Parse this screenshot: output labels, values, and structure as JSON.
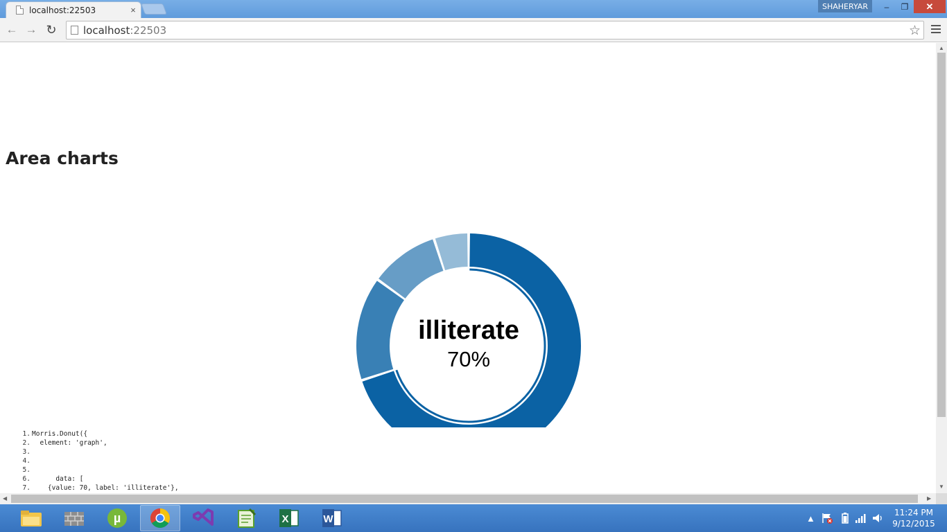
{
  "browser": {
    "tab_title": "localhost:22503",
    "tab_close": "×",
    "profile_name": "SHAHERYAR",
    "window_controls": {
      "minimize": "–",
      "maximize": "❐",
      "close": "✕"
    },
    "nav": {
      "back": "←",
      "forward": "→",
      "reload": "↻"
    },
    "url_host": "localhost",
    "url_port": ":22503",
    "bookmark_star": "☆"
  },
  "page": {
    "heading": "Area charts",
    "chart_data": {
      "type": "pie",
      "variant": "donut",
      "center_label": "illiterate",
      "center_value": "70%",
      "slices": [
        {
          "label": "illiterate",
          "value": 70,
          "color": "#0b62a4"
        },
        {
          "label": "",
          "value": 15,
          "color": "#3980b5"
        },
        {
          "label": "",
          "value": 10,
          "color": "#679dc6"
        },
        {
          "label": "",
          "value": 5,
          "color": "#95bbd7"
        }
      ]
    },
    "code_lines": [
      {
        "n": "1.",
        "text": "Morris.Donut({"
      },
      {
        "n": "2.",
        "text": "  element: 'graph',"
      },
      {
        "n": "3.",
        "text": ""
      },
      {
        "n": "4.",
        "text": ""
      },
      {
        "n": "5.",
        "text": ""
      },
      {
        "n": "6.",
        "text": "      data: ["
      },
      {
        "n": "7.",
        "text": "    {value: 70, label: 'illiterate'},"
      }
    ]
  },
  "taskbar": {
    "apps": [
      {
        "name": "file-explorer",
        "color": "#f3c64a"
      },
      {
        "name": "firewall",
        "color": "#9a9a9a"
      },
      {
        "name": "utorrent",
        "color": "#78b83a"
      },
      {
        "name": "chrome",
        "color": "#db4437"
      },
      {
        "name": "visual-studio",
        "color": "#68217a"
      },
      {
        "name": "notepad",
        "color": "#5aa02c"
      },
      {
        "name": "excel",
        "color": "#1e7145"
      },
      {
        "name": "word",
        "color": "#2b579a"
      }
    ],
    "tray_chevron": "▲",
    "clock_time": "11:24 PM",
    "clock_date": "9/12/2015"
  }
}
